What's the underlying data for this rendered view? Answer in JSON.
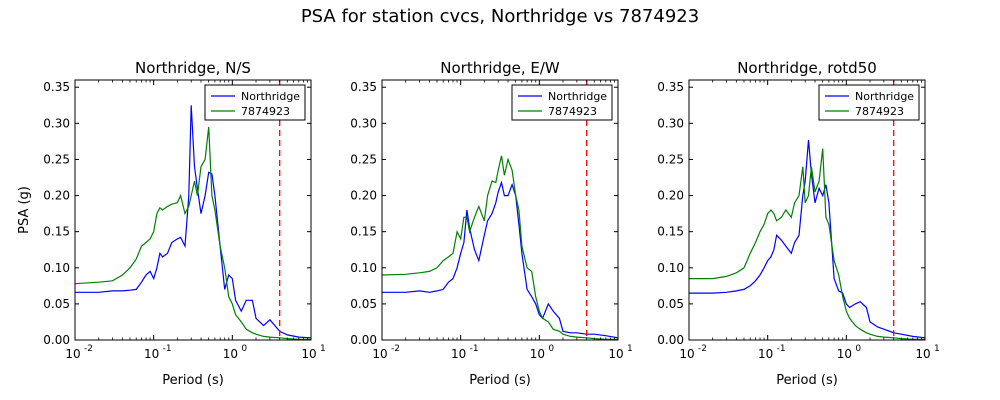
{
  "suptitle": "PSA for station cvcs, Northridge vs 7874923",
  "chart_data": [
    {
      "type": "line",
      "title": "Northridge, N/S",
      "xlabel": "Period (s)",
      "ylabel": "PSA (g)",
      "xscale": "log",
      "xlim": [
        0.01,
        10
      ],
      "ylim": [
        0,
        0.36
      ],
      "yticks": [
        "0.00",
        "0.05",
        "0.10",
        "0.15",
        "0.20",
        "0.25",
        "0.30",
        "0.35"
      ],
      "xticks": [
        "10^-2",
        "10^-1",
        "10^0",
        "10^1"
      ],
      "legend": "top-right",
      "vline": {
        "x": 4.0,
        "color": "#ff0000",
        "style": "dashed"
      },
      "series": [
        {
          "name": "Northridge",
          "color": "#0000ff",
          "x": [
            0.01,
            0.02,
            0.03,
            0.04,
            0.05,
            0.06,
            0.07,
            0.08,
            0.09,
            0.1,
            0.11,
            0.12,
            0.13,
            0.15,
            0.17,
            0.2,
            0.22,
            0.25,
            0.28,
            0.3,
            0.33,
            0.36,
            0.4,
            0.45,
            0.5,
            0.55,
            0.6,
            0.7,
            0.8,
            0.9,
            1.0,
            1.1,
            1.3,
            1.5,
            1.8,
            2.0,
            2.5,
            3.0,
            4.0,
            5.0,
            7.0,
            10.0
          ],
          "values": [
            0.066,
            0.066,
            0.068,
            0.068,
            0.069,
            0.07,
            0.08,
            0.09,
            0.095,
            0.085,
            0.1,
            0.12,
            0.115,
            0.12,
            0.135,
            0.14,
            0.142,
            0.13,
            0.2,
            0.325,
            0.24,
            0.21,
            0.175,
            0.2,
            0.232,
            0.23,
            0.2,
            0.13,
            0.07,
            0.09,
            0.085,
            0.055,
            0.04,
            0.055,
            0.055,
            0.03,
            0.02,
            0.028,
            0.012,
            0.007,
            0.004,
            0.003
          ]
        },
        {
          "name": "7874923",
          "color": "#008000",
          "x": [
            0.01,
            0.02,
            0.03,
            0.04,
            0.05,
            0.06,
            0.07,
            0.08,
            0.09,
            0.1,
            0.11,
            0.12,
            0.13,
            0.15,
            0.17,
            0.2,
            0.22,
            0.25,
            0.28,
            0.3,
            0.33,
            0.36,
            0.4,
            0.45,
            0.5,
            0.55,
            0.6,
            0.7,
            0.8,
            0.9,
            1.0,
            1.1,
            1.3,
            1.5,
            1.8,
            2.0,
            2.5,
            3.0,
            4.0,
            5.0,
            7.0,
            10.0
          ],
          "values": [
            0.078,
            0.08,
            0.082,
            0.09,
            0.1,
            0.112,
            0.13,
            0.135,
            0.14,
            0.15,
            0.175,
            0.183,
            0.18,
            0.185,
            0.188,
            0.19,
            0.2,
            0.175,
            0.185,
            0.2,
            0.22,
            0.2,
            0.24,
            0.25,
            0.295,
            0.2,
            0.18,
            0.13,
            0.1,
            0.06,
            0.05,
            0.035,
            0.025,
            0.015,
            0.01,
            0.008,
            0.005,
            0.004,
            0.003,
            0.002,
            0.001,
            0.001
          ]
        }
      ]
    },
    {
      "type": "line",
      "title": "Northridge, E/W",
      "xlabel": "Period (s)",
      "ylabel": "",
      "xscale": "log",
      "xlim": [
        0.01,
        10
      ],
      "ylim": [
        0,
        0.36
      ],
      "yticks": [
        "0.00",
        "0.05",
        "0.10",
        "0.15",
        "0.20",
        "0.25",
        "0.30",
        "0.35"
      ],
      "xticks": [
        "10^-2",
        "10^-1",
        "10^0",
        "10^1"
      ],
      "legend": "top-right",
      "vline": {
        "x": 4.0,
        "color": "#ff0000",
        "style": "dashed"
      },
      "series": [
        {
          "name": "Northridge",
          "color": "#0000ff",
          "x": [
            0.01,
            0.02,
            0.03,
            0.04,
            0.05,
            0.06,
            0.07,
            0.08,
            0.09,
            0.1,
            0.11,
            0.12,
            0.13,
            0.15,
            0.17,
            0.2,
            0.22,
            0.25,
            0.28,
            0.3,
            0.33,
            0.36,
            0.4,
            0.45,
            0.5,
            0.55,
            0.6,
            0.7,
            0.8,
            0.9,
            1.0,
            1.1,
            1.3,
            1.5,
            1.8,
            2.0,
            2.5,
            3.0,
            4.0,
            5.0,
            7.0,
            10.0
          ],
          "values": [
            0.066,
            0.066,
            0.068,
            0.066,
            0.068,
            0.07,
            0.08,
            0.085,
            0.1,
            0.12,
            0.135,
            0.18,
            0.155,
            0.125,
            0.11,
            0.145,
            0.165,
            0.175,
            0.19,
            0.205,
            0.218,
            0.2,
            0.2,
            0.215,
            0.2,
            0.16,
            0.12,
            0.07,
            0.06,
            0.05,
            0.035,
            0.03,
            0.05,
            0.04,
            0.03,
            0.012,
            0.01,
            0.01,
            0.008,
            0.008,
            0.006,
            0.003
          ]
        },
        {
          "name": "7874923",
          "color": "#008000",
          "x": [
            0.01,
            0.02,
            0.03,
            0.04,
            0.05,
            0.06,
            0.07,
            0.08,
            0.09,
            0.1,
            0.11,
            0.12,
            0.13,
            0.15,
            0.17,
            0.2,
            0.22,
            0.25,
            0.28,
            0.3,
            0.33,
            0.36,
            0.4,
            0.45,
            0.5,
            0.55,
            0.6,
            0.7,
            0.8,
            0.9,
            1.0,
            1.1,
            1.3,
            1.5,
            1.8,
            2.0,
            2.5,
            3.0,
            4.0,
            5.0,
            7.0,
            10.0
          ],
          "values": [
            0.09,
            0.091,
            0.093,
            0.095,
            0.1,
            0.11,
            0.115,
            0.12,
            0.15,
            0.14,
            0.17,
            0.17,
            0.15,
            0.17,
            0.185,
            0.165,
            0.2,
            0.22,
            0.218,
            0.235,
            0.255,
            0.228,
            0.25,
            0.235,
            0.2,
            0.18,
            0.13,
            0.1,
            0.095,
            0.06,
            0.04,
            0.03,
            0.025,
            0.015,
            0.012,
            0.008,
            0.005,
            0.004,
            0.003,
            0.002,
            0.001,
            0.001
          ]
        }
      ]
    },
    {
      "type": "line",
      "title": "Northridge, rotd50",
      "xlabel": "Period (s)",
      "ylabel": "",
      "xscale": "log",
      "xlim": [
        0.01,
        10
      ],
      "ylim": [
        0,
        0.36
      ],
      "yticks": [
        "0.00",
        "0.05",
        "0.10",
        "0.15",
        "0.20",
        "0.25",
        "0.30",
        "0.35"
      ],
      "xticks": [
        "10^-2",
        "10^-1",
        "10^0",
        "10^1"
      ],
      "legend": "top-right",
      "vline": {
        "x": 4.0,
        "color": "#ff0000",
        "style": "dashed"
      },
      "series": [
        {
          "name": "Northridge",
          "color": "#0000ff",
          "x": [
            0.01,
            0.02,
            0.03,
            0.04,
            0.05,
            0.06,
            0.07,
            0.08,
            0.09,
            0.1,
            0.11,
            0.12,
            0.13,
            0.15,
            0.17,
            0.2,
            0.22,
            0.25,
            0.28,
            0.3,
            0.33,
            0.36,
            0.4,
            0.45,
            0.5,
            0.55,
            0.6,
            0.7,
            0.8,
            0.9,
            1.0,
            1.1,
            1.3,
            1.5,
            1.8,
            2.0,
            2.5,
            3.0,
            4.0,
            5.0,
            7.0,
            10.0
          ],
          "values": [
            0.065,
            0.065,
            0.066,
            0.068,
            0.07,
            0.075,
            0.082,
            0.09,
            0.1,
            0.11,
            0.115,
            0.125,
            0.145,
            0.138,
            0.13,
            0.12,
            0.135,
            0.145,
            0.2,
            0.22,
            0.277,
            0.23,
            0.19,
            0.21,
            0.2,
            0.215,
            0.19,
            0.085,
            0.068,
            0.065,
            0.05,
            0.045,
            0.05,
            0.053,
            0.045,
            0.025,
            0.018,
            0.015,
            0.01,
            0.008,
            0.005,
            0.003
          ]
        },
        {
          "name": "7874923",
          "color": "#008000",
          "x": [
            0.01,
            0.02,
            0.03,
            0.04,
            0.05,
            0.06,
            0.07,
            0.08,
            0.09,
            0.1,
            0.11,
            0.12,
            0.13,
            0.15,
            0.17,
            0.2,
            0.22,
            0.25,
            0.28,
            0.3,
            0.33,
            0.36,
            0.4,
            0.45,
            0.5,
            0.55,
            0.6,
            0.7,
            0.8,
            0.9,
            1.0,
            1.1,
            1.3,
            1.5,
            1.8,
            2.0,
            2.5,
            3.0,
            4.0,
            5.0,
            7.0,
            10.0
          ],
          "values": [
            0.085,
            0.085,
            0.088,
            0.093,
            0.1,
            0.12,
            0.135,
            0.15,
            0.16,
            0.175,
            0.18,
            0.175,
            0.165,
            0.17,
            0.18,
            0.17,
            0.19,
            0.2,
            0.24,
            0.19,
            0.2,
            0.24,
            0.205,
            0.22,
            0.265,
            0.17,
            0.16,
            0.11,
            0.09,
            0.06,
            0.04,
            0.03,
            0.02,
            0.015,
            0.01,
            0.008,
            0.005,
            0.004,
            0.003,
            0.002,
            0.001,
            0.001
          ]
        }
      ]
    }
  ]
}
